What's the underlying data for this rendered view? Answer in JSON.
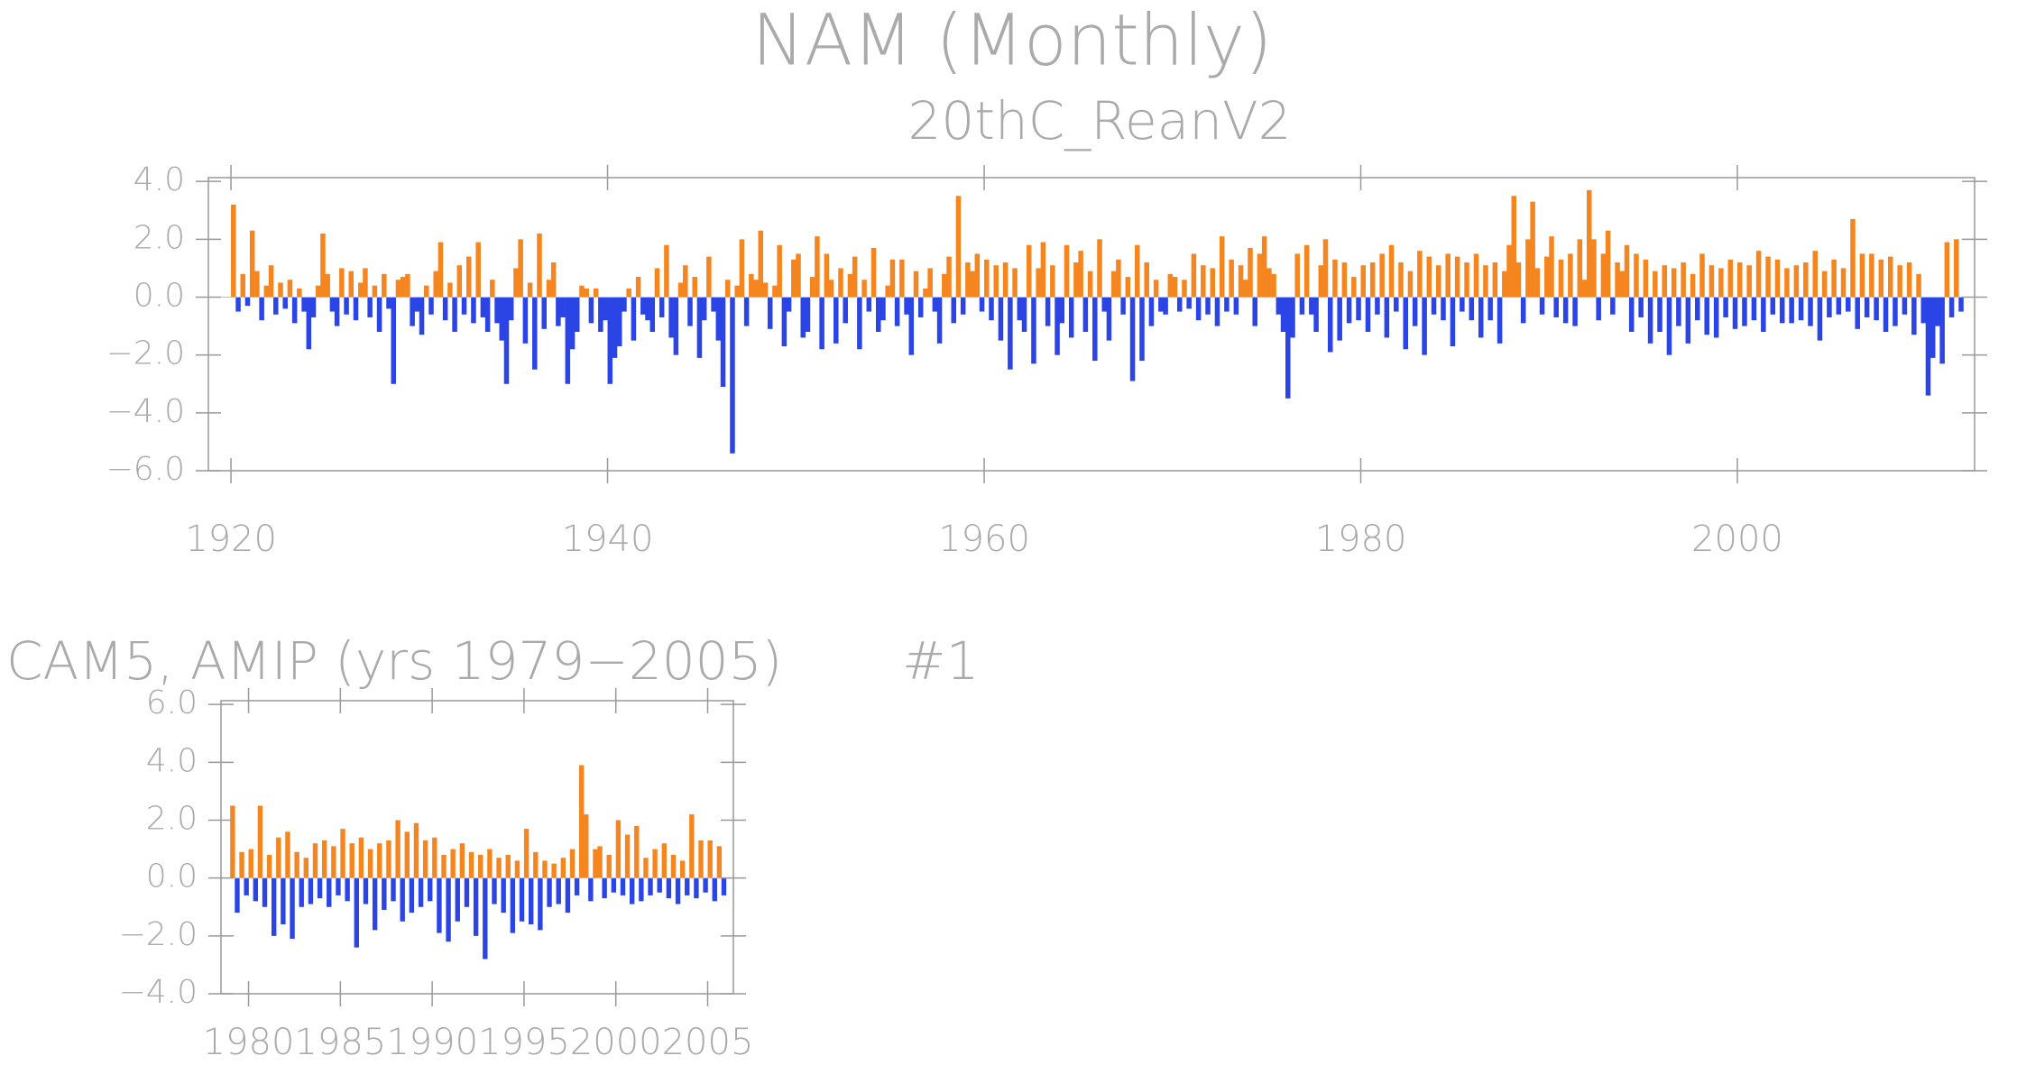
{
  "chart_data": [
    {
      "type": "bar",
      "title": "NAM (Monthly)",
      "subtitle": "20thC_ReanV2",
      "colors": {
        "positive": "#f5861f",
        "negative": "#2a44e6"
      },
      "xlim": [
        1918.8,
        2012.6
      ],
      "xticks": [
        1920,
        1940,
        1960,
        1980,
        2000
      ],
      "ylim": [
        -6,
        4.13
      ],
      "yticks": [
        {
          "value": -6,
          "label": "−6.0"
        },
        {
          "value": -4,
          "label": "−4.0"
        },
        {
          "value": -2,
          "label": "−2.0"
        },
        {
          "value": 0,
          "label": "0.0"
        },
        {
          "value": 2,
          "label": "2.0"
        },
        {
          "value": 4,
          "label": "4.0"
        }
      ],
      "x": [
        1920,
        1920.25,
        1920.5,
        1920.75,
        1921,
        1921.25,
        1921.5,
        1921.75,
        1922,
        1922.25,
        1922.5,
        1922.75,
        1923,
        1923.25,
        1923.5,
        1923.75,
        1924,
        1924.25,
        1924.5,
        1924.75,
        1925,
        1925.25,
        1925.5,
        1925.75,
        1926,
        1926.25,
        1926.5,
        1926.75,
        1927,
        1927.25,
        1927.5,
        1927.75,
        1928,
        1928.25,
        1928.5,
        1928.75,
        1929,
        1929.25,
        1929.5,
        1929.75,
        1930,
        1930.25,
        1930.5,
        1930.75,
        1931,
        1931.25,
        1931.5,
        1931.75,
        1932,
        1932.25,
        1932.5,
        1932.75,
        1933,
        1933.25,
        1933.5,
        1933.75,
        1934,
        1934.25,
        1934.5,
        1934.75,
        1935,
        1935.25,
        1935.5,
        1935.75,
        1936,
        1936.25,
        1936.5,
        1936.75,
        1937,
        1937.25,
        1937.5,
        1937.75,
        1938,
        1938.25,
        1938.5,
        1938.75,
        1939,
        1939.25,
        1939.5,
        1939.75,
        1940,
        1940.25,
        1940.5,
        1940.75,
        1941,
        1941.25,
        1941.5,
        1941.75,
        1942,
        1942.25,
        1942.5,
        1942.75,
        1943,
        1943.25,
        1943.5,
        1943.75,
        1944,
        1944.25,
        1944.5,
        1944.75,
        1945,
        1945.25,
        1945.5,
        1945.75,
        1946,
        1946.25,
        1946.5,
        1946.75,
        1947,
        1947.25,
        1947.5,
        1947.75,
        1948,
        1948.25,
        1948.5,
        1948.75,
        1949,
        1949.25,
        1949.5,
        1949.75,
        1950,
        1950.25,
        1950.5,
        1950.75,
        1951,
        1951.25,
        1951.5,
        1951.75,
        1952,
        1952.25,
        1952.5,
        1952.75,
        1953,
        1953.25,
        1953.5,
        1953.75,
        1954,
        1954.25,
        1954.5,
        1954.75,
        1955,
        1955.25,
        1955.5,
        1955.75,
        1956,
        1956.25,
        1956.5,
        1956.75,
        1957,
        1957.25,
        1957.5,
        1957.75,
        1958,
        1958.25,
        1958.5,
        1958.75,
        1959,
        1959.25,
        1959.5,
        1959.75,
        1960,
        1960.25,
        1960.5,
        1960.75,
        1961,
        1961.25,
        1961.5,
        1961.75,
        1962,
        1962.25,
        1962.5,
        1962.75,
        1963,
        1963.25,
        1963.5,
        1963.75,
        1964,
        1964.25,
        1964.5,
        1964.75,
        1965,
        1965.25,
        1965.5,
        1965.75,
        1966,
        1966.25,
        1966.5,
        1966.75,
        1967,
        1967.25,
        1967.5,
        1967.75,
        1968,
        1968.25,
        1968.5,
        1968.75,
        1969,
        1969.25,
        1969.5,
        1969.75,
        1970,
        1970.25,
        1970.5,
        1970.75,
        1971,
        1971.25,
        1971.5,
        1971.75,
        1972,
        1972.25,
        1972.5,
        1972.75,
        1973,
        1973.25,
        1973.5,
        1973.75,
        1974,
        1974.25,
        1974.5,
        1974.75,
        1975,
        1975.25,
        1975.5,
        1975.75,
        1976,
        1976.25,
        1976.5,
        1976.75,
        1977,
        1977.25,
        1977.5,
        1977.75,
        1978,
        1978.25,
        1978.5,
        1978.75,
        1979,
        1979.25,
        1979.5,
        1979.75,
        1980,
        1980.25,
        1980.5,
        1980.75,
        1981,
        1981.25,
        1981.5,
        1981.75,
        1982,
        1982.25,
        1982.5,
        1982.75,
        1983,
        1983.25,
        1983.5,
        1983.75,
        1984,
        1984.25,
        1984.5,
        1984.75,
        1985,
        1985.25,
        1985.5,
        1985.75,
        1986,
        1986.25,
        1986.5,
        1986.75,
        1987,
        1987.25,
        1987.5,
        1987.75,
        1988,
        1988.25,
        1988.5,
        1988.75,
        1989,
        1989.25,
        1989.5,
        1989.75,
        1990,
        1990.25,
        1990.5,
        1990.75,
        1991,
        1991.25,
        1991.5,
        1991.75,
        1992,
        1992.25,
        1992.5,
        1992.75,
        1993,
        1993.25,
        1993.5,
        1993.75,
        1994,
        1994.25,
        1994.5,
        1994.75,
        1995,
        1995.25,
        1995.5,
        1995.75,
        1996,
        1996.25,
        1996.5,
        1996.75,
        1997,
        1997.25,
        1997.5,
        1997.75,
        1998,
        1998.25,
        1998.5,
        1998.75,
        1999,
        1999.25,
        1999.5,
        1999.75,
        2000,
        2000.25,
        2000.5,
        2000.75,
        2001,
        2001.25,
        2001.5,
        2001.75,
        2002,
        2002.25,
        2002.5,
        2002.75,
        2003,
        2003.25,
        2003.5,
        2003.75,
        2004,
        2004.25,
        2004.5,
        2004.75,
        2005,
        2005.25,
        2005.5,
        2005.75,
        2006,
        2006.25,
        2006.5,
        2006.75,
        2007,
        2007.25,
        2007.5,
        2007.75,
        2008,
        2008.25,
        2008.5,
        2008.75,
        2009,
        2009.25,
        2009.5,
        2009.75,
        2010,
        2010.25,
        2010.5,
        2010.75,
        2011,
        2011.25,
        2011.5,
        2011.75
      ],
      "values": [
        3.2,
        -0.5,
        0.8,
        -0.3,
        2.3,
        0.9,
        -0.8,
        0.4,
        1.1,
        -0.6,
        0.5,
        -0.4,
        0.6,
        -0.9,
        0.3,
        -0.5,
        -1.8,
        -0.7,
        0.4,
        2.2,
        0.8,
        -0.5,
        -1.0,
        1.0,
        -0.6,
        0.9,
        -0.8,
        0.5,
        1.0,
        -0.7,
        0.4,
        -1.2,
        0.8,
        -0.4,
        -3.0,
        0.6,
        0.7,
        0.8,
        -1.0,
        -0.5,
        -1.3,
        0.4,
        -0.6,
        0.9,
        1.9,
        -0.8,
        0.5,
        -1.2,
        1.1,
        -0.6,
        1.4,
        -0.9,
        1.9,
        -0.7,
        -1.2,
        0.6,
        -0.9,
        -1.5,
        -3.0,
        -0.8,
        1.0,
        2.0,
        -1.6,
        0.5,
        -2.5,
        2.2,
        -1.1,
        0.6,
        1.2,
        -1.0,
        -0.7,
        -3.0,
        -1.8,
        -1.2,
        0.4,
        0.3,
        -0.9,
        0.3,
        -1.2,
        -0.8,
        -3.0,
        -2.1,
        -1.7,
        -0.5,
        0.3,
        -1.5,
        0.7,
        -0.6,
        -0.8,
        -1.2,
        1.0,
        -0.7,
        1.8,
        -1.4,
        -2.0,
        0.5,
        1.1,
        -1.0,
        0.7,
        -2.1,
        -0.8,
        1.4,
        -0.5,
        -1.5,
        -3.1,
        0.6,
        -5.4,
        0.4,
        2.0,
        -1.0,
        0.8,
        0.6,
        2.3,
        0.5,
        -1.1,
        0.4,
        1.8,
        -1.7,
        -0.5,
        1.3,
        1.5,
        -1.4,
        -1.2,
        0.7,
        2.1,
        -1.8,
        1.5,
        0.6,
        -1.6,
        1.0,
        -0.9,
        0.8,
        1.4,
        -1.8,
        0.6,
        -0.5,
        1.7,
        -1.2,
        -0.8,
        0.4,
        1.3,
        -1.0,
        1.3,
        -0.6,
        -2.0,
        0.9,
        -0.7,
        0.3,
        1.0,
        -0.5,
        -1.6,
        0.8,
        1.4,
        -0.9,
        3.5,
        -0.6,
        1.2,
        0.9,
        1.5,
        -0.5,
        1.3,
        -0.8,
        1.1,
        -1.5,
        1.2,
        -2.5,
        1.0,
        -0.8,
        -1.2,
        1.8,
        -2.3,
        1.0,
        1.9,
        -1.0,
        1.1,
        -2.0,
        -0.9,
        1.8,
        -1.4,
        1.2,
        1.6,
        -1.2,
        0.9,
        -2.2,
        2.0,
        -0.5,
        -1.5,
        0.9,
        1.3,
        -0.6,
        0.7,
        -2.9,
        1.8,
        -2.2,
        1.2,
        -1.0,
        0.6,
        -0.5,
        -0.6,
        0.8,
        0.7,
        -0.5,
        0.6,
        -0.4,
        1.5,
        -0.8,
        1.1,
        -0.6,
        1.0,
        -1.0,
        2.1,
        -0.5,
        1.3,
        -0.6,
        1.1,
        0.6,
        1.7,
        -1.0,
        1.5,
        2.1,
        1.0,
        0.8,
        -0.6,
        -1.2,
        -3.5,
        -1.4,
        1.5,
        -0.6,
        1.8,
        -0.6,
        -1.2,
        1.1,
        2.0,
        -1.9,
        1.3,
        -1.5,
        1.2,
        -0.9,
        0.7,
        -0.8,
        1.1,
        -1.2,
        1.2,
        -0.6,
        1.5,
        -1.4,
        1.8,
        -0.5,
        1.2,
        -1.8,
        0.9,
        -1.0,
        1.6,
        -2.0,
        1.4,
        -0.6,
        1.1,
        -0.8,
        1.5,
        -1.7,
        1.4,
        -0.5,
        1.2,
        -0.8,
        1.5,
        -1.4,
        1.1,
        -0.8,
        1.2,
        -1.6,
        0.9,
        1.8,
        3.5,
        1.2,
        -0.9,
        2.0,
        3.3,
        1.0,
        -0.6,
        1.4,
        2.1,
        -0.7,
        1.3,
        -0.9,
        1.5,
        -1.0,
        2.0,
        0.6,
        3.7,
        2.0,
        -0.8,
        1.5,
        2.3,
        -0.6,
        1.2,
        0.9,
        1.8,
        -1.2,
        1.5,
        -0.7,
        1.3,
        -1.6,
        0.9,
        -1.2,
        1.1,
        -2.0,
        1.0,
        -1.0,
        1.2,
        -1.6,
        0.8,
        -0.8,
        1.5,
        -1.3,
        1.1,
        -1.4,
        1.0,
        -0.7,
        1.3,
        -1.1,
        1.2,
        -1.0,
        1.1,
        -0.8,
        1.6,
        -1.2,
        1.4,
        -0.6,
        1.3,
        -0.9,
        1.0,
        -0.9,
        1.1,
        -0.8,
        1.2,
        -1.0,
        1.6,
        -1.5,
        0.9,
        -0.7,
        1.3,
        -0.6,
        1.0,
        -0.5,
        2.7,
        -1.1,
        1.5,
        -0.7,
        1.5,
        -0.8,
        1.3,
        -1.2,
        1.4,
        -1.0,
        1.1,
        -0.6,
        1.2,
        -1.3,
        0.8,
        -0.9,
        -3.4,
        -2.1,
        -1.0,
        -2.3,
        1.9,
        -0.7,
        2.0,
        -0.5
      ]
    },
    {
      "type": "bar",
      "title": "CAM5, AMIP (yrs 1979−2005)",
      "annotation": "#1",
      "colors": {
        "positive": "#f5861f",
        "negative": "#2a44e6"
      },
      "xlim": [
        1978.5,
        2006.4
      ],
      "xticks": [
        1980,
        1985,
        1990,
        1995,
        2000,
        2005
      ],
      "ylim": [
        -4,
        6.13
      ],
      "yticks": [
        {
          "value": -4,
          "label": "−4.0"
        },
        {
          "value": -2,
          "label": "−2.0"
        },
        {
          "value": 0,
          "label": "0.0"
        },
        {
          "value": 2,
          "label": "2.0"
        },
        {
          "value": 4,
          "label": "4.0"
        },
        {
          "value": 6,
          "label": "6.0"
        }
      ],
      "x": [
        1979,
        1979.25,
        1979.5,
        1979.75,
        1980,
        1980.25,
        1980.5,
        1980.75,
        1981,
        1981.25,
        1981.5,
        1981.75,
        1982,
        1982.25,
        1982.5,
        1982.75,
        1983,
        1983.25,
        1983.5,
        1983.75,
        1984,
        1984.25,
        1984.5,
        1984.75,
        1985,
        1985.25,
        1985.5,
        1985.75,
        1986,
        1986.25,
        1986.5,
        1986.75,
        1987,
        1987.25,
        1987.5,
        1987.75,
        1988,
        1988.25,
        1988.5,
        1988.75,
        1989,
        1989.25,
        1989.5,
        1989.75,
        1990,
        1990.25,
        1990.5,
        1990.75,
        1991,
        1991.25,
        1991.5,
        1991.75,
        1992,
        1992.25,
        1992.5,
        1992.75,
        1993,
        1993.25,
        1993.5,
        1993.75,
        1994,
        1994.25,
        1994.5,
        1994.75,
        1995,
        1995.25,
        1995.5,
        1995.75,
        1996,
        1996.25,
        1996.5,
        1996.75,
        1997,
        1997.25,
        1997.5,
        1997.75,
        1998,
        1998.25,
        1998.5,
        1998.75,
        1999,
        1999.25,
        1999.5,
        1999.75,
        2000,
        2000.25,
        2000.5,
        2000.75,
        2001,
        2001.25,
        2001.5,
        2001.75,
        2002,
        2002.25,
        2002.5,
        2002.75,
        2003,
        2003.25,
        2003.5,
        2003.75,
        2004,
        2004.25,
        2004.5,
        2004.75,
        2005,
        2005.25,
        2005.5,
        2005.75
      ],
      "values": [
        2.5,
        -1.2,
        0.9,
        -0.6,
        1.0,
        -0.8,
        2.5,
        -1.0,
        0.8,
        -2.0,
        1.4,
        -1.6,
        1.6,
        -2.1,
        0.9,
        -1.0,
        0.7,
        -0.9,
        1.2,
        -0.7,
        1.3,
        -1.0,
        1.1,
        -0.6,
        1.7,
        -0.8,
        1.2,
        -2.4,
        1.4,
        -0.9,
        1.0,
        -1.8,
        1.2,
        -1.1,
        1.3,
        -0.8,
        2.0,
        -1.5,
        1.6,
        -1.2,
        1.9,
        -1.0,
        1.3,
        -0.8,
        1.4,
        -1.9,
        0.8,
        -2.2,
        1.0,
        -1.5,
        1.2,
        -1.0,
        0.9,
        -2.0,
        0.8,
        -2.8,
        1.0,
        -0.9,
        0.7,
        -1.2,
        0.8,
        -1.9,
        0.6,
        -1.5,
        1.7,
        -1.6,
        0.9,
        -1.8,
        0.6,
        -1.0,
        0.5,
        -0.9,
        0.7,
        -1.2,
        1.0,
        -0.6,
        3.9,
        2.2,
        -0.8,
        1.0,
        1.1,
        -0.7,
        0.8,
        -0.5,
        2.0,
        -0.6,
        1.5,
        -0.9,
        1.8,
        -0.8,
        0.7,
        -0.6,
        1.0,
        -0.5,
        1.2,
        -0.7,
        0.8,
        -0.9,
        0.6,
        -0.6,
        2.2,
        -0.7,
        1.3,
        -0.5,
        1.3,
        -0.8,
        1.1,
        -0.6
      ]
    }
  ]
}
